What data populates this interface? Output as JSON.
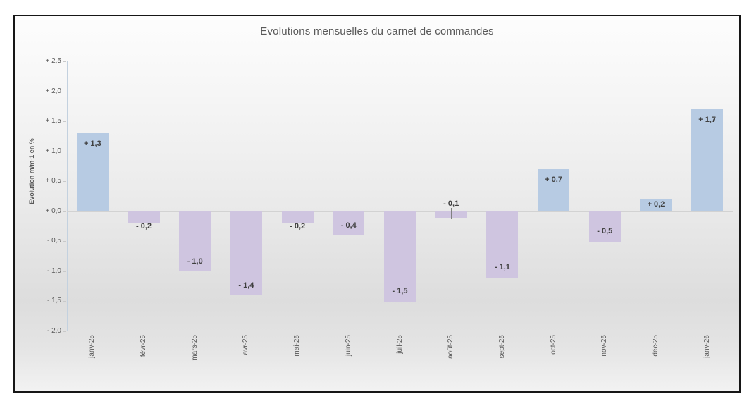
{
  "chart_data": {
    "type": "bar",
    "title": "Evolutions mensuelles du carnet de commandes",
    "xlabel": "",
    "ylabel": "Evolution m/m-1 en %",
    "categories": [
      "janv-25",
      "févr-25",
      "mars-25",
      "avr-25",
      "mai-25",
      "juin-25",
      "juil-25",
      "août-25",
      "sept-25",
      "oct-25",
      "nov-25",
      "déc-25",
      "janv-26"
    ],
    "values": [
      1.3,
      -0.2,
      -1.0,
      -1.4,
      -0.2,
      -0.4,
      -1.5,
      -0.1,
      -1.1,
      0.7,
      -0.5,
      0.2,
      1.7
    ],
    "value_labels": [
      "+ 1,3",
      "- 0,2",
      "- 1,0",
      "- 1,4",
      "- 0,2",
      "- 0,4",
      "- 1,5",
      "- 0,1",
      "- 1,1",
      "+ 0,7",
      "- 0,5",
      "+ 0,2",
      "+ 1,7"
    ],
    "ylim": [
      -2.0,
      2.5
    ],
    "ytick_values": [
      2.5,
      2.0,
      1.5,
      1.0,
      0.5,
      0.0,
      -0.5,
      -1.0,
      -1.5,
      -2.0
    ],
    "ytick_labels": [
      "+ 2,5",
      "+ 2,0",
      "+ 1,5",
      "+ 1,0",
      "+ 0,5",
      "+ 0,0",
      "- 0,5",
      "- 1,0",
      "- 1,5",
      "- 2,0"
    ],
    "legend": "none",
    "grid": "zero-line-only",
    "callout_index": 7,
    "colors": {
      "positive_bar": "#b7cbe3",
      "negative_bar": "#cfc5e0",
      "axis_line": "#c3d1df",
      "zero_line": "#d2d2d2",
      "axis_text": "#595959",
      "value_text": "#3f3f3f",
      "leader_line": "#808080",
      "frame_border": "#161616"
    }
  }
}
